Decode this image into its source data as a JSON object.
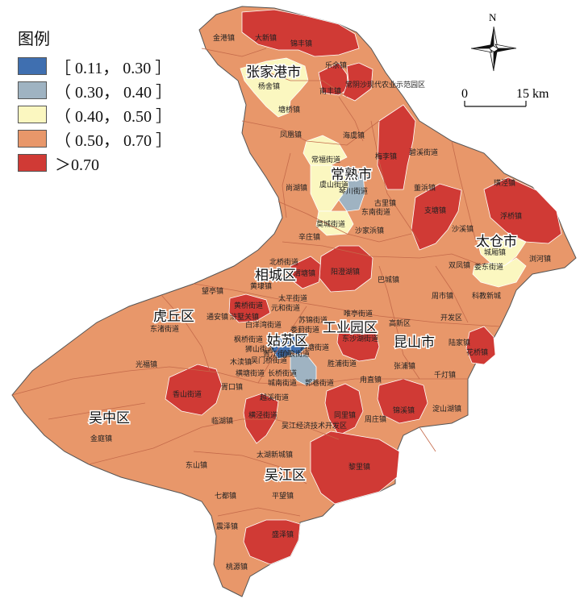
{
  "legend": {
    "title": "图例",
    "items": [
      {
        "label": "［ 0.11， 0.30 ］",
        "color": "#3f6fb0"
      },
      {
        "label": "（ 0.30， 0.40 ］",
        "color": "#9fb3c2"
      },
      {
        "label": "（ 0.40， 0.50 ］",
        "color": "#fbf7c0"
      },
      {
        "label": "（ 0.50， 0.70 ］",
        "color": "#e8976a"
      },
      {
        "label": "＞0.70",
        "color": "#d03a35"
      }
    ]
  },
  "north_label": "N",
  "scale": {
    "start": "0",
    "end": "15 km"
  },
  "colors": {
    "boundary": "#ffffff",
    "outline": "#555555",
    "district_line": "#c46a4a"
  },
  "districts": [
    {
      "name": "张家港市",
      "class": 3
    },
    {
      "name": "常熟市",
      "class": 3
    },
    {
      "name": "太仓市",
      "class": 3
    },
    {
      "name": "相城区",
      "class": 3
    },
    {
      "name": "虎丘区",
      "class": 3
    },
    {
      "name": "工业园区",
      "class": 3
    },
    {
      "name": "姑苏区",
      "class": 3
    },
    {
      "name": "昆山市",
      "class": 3
    },
    {
      "name": "吴中区",
      "class": 3
    },
    {
      "name": "吴江区",
      "class": 3
    }
  ],
  "towns": [
    {
      "name": "金港镇",
      "class": 3
    },
    {
      "name": "大新镇",
      "class": 4
    },
    {
      "name": "锦丰镇",
      "class": 4
    },
    {
      "name": "乐余镇",
      "class": 3
    },
    {
      "name": "杨舍镇",
      "class": 2
    },
    {
      "name": "南丰镇",
      "class": 4
    },
    {
      "name": "常阴沙现代农业示范园区",
      "class": 4
    },
    {
      "name": "塘桥镇",
      "class": 3
    },
    {
      "name": "凤凰镇",
      "class": 3
    },
    {
      "name": "海虞镇",
      "class": 3
    },
    {
      "name": "梅李镇",
      "class": 4
    },
    {
      "name": "碧溪街道",
      "class": 3
    },
    {
      "name": "常福街道",
      "class": 2
    },
    {
      "name": "虞山街道",
      "class": 2
    },
    {
      "name": "琴川街道",
      "class": 1
    },
    {
      "name": "尚湖镇",
      "class": 3
    },
    {
      "name": "古里镇",
      "class": 3
    },
    {
      "name": "东南街道",
      "class": 3
    },
    {
      "name": "董浜镇",
      "class": 3
    },
    {
      "name": "璜泾镇",
      "class": 3
    },
    {
      "name": "支塘镇",
      "class": 4
    },
    {
      "name": "浮桥镇",
      "class": 4
    },
    {
      "name": "莫城街道",
      "class": 2
    },
    {
      "name": "沙家浜镇",
      "class": 3
    },
    {
      "name": "辛庄镇",
      "class": 3
    },
    {
      "name": "沙溪镇",
      "class": 3
    },
    {
      "name": "城厢镇",
      "class": 2
    },
    {
      "name": "双凤镇",
      "class": 3
    },
    {
      "name": "浏河镇",
      "class": 3
    },
    {
      "name": "娄东街道",
      "class": 2
    },
    {
      "name": "北桥街道",
      "class": 3
    },
    {
      "name": "渭塘镇",
      "class": 4
    },
    {
      "name": "阳澄湖镇",
      "class": 4
    },
    {
      "name": "黄埭镇",
      "class": 3
    },
    {
      "name": "巴城镇",
      "class": 3
    },
    {
      "name": "望亭镇",
      "class": 3
    },
    {
      "name": "太平街道",
      "class": 3
    },
    {
      "name": "黄桥街道",
      "class": 4
    },
    {
      "name": "元和街道",
      "class": 3
    },
    {
      "name": "周市镇",
      "class": 3
    },
    {
      "name": "科教新城",
      "class": 3
    },
    {
      "name": "通安镇",
      "class": 3
    },
    {
      "name": "浒墅关镇",
      "class": 3
    },
    {
      "name": "唯亭街道",
      "class": 3
    },
    {
      "name": "开发区",
      "class": 3
    },
    {
      "name": "东渚街道",
      "class": 3
    },
    {
      "name": "白洋湾街道",
      "class": 3
    },
    {
      "name": "苏锦街道",
      "class": 3
    },
    {
      "name": "娄葑街道",
      "class": 3
    },
    {
      "name": "高新区",
      "class": 3
    },
    {
      "name": "陆家镇",
      "class": 3
    },
    {
      "name": "枫桥街道",
      "class": 3
    },
    {
      "name": "狮山街道",
      "class": 3
    },
    {
      "name": "东沙湖街道",
      "class": 4
    },
    {
      "name": "斜塘街道",
      "class": 3
    },
    {
      "name": "花桥镇",
      "class": 4
    },
    {
      "name": "光福镇",
      "class": 3
    },
    {
      "name": "木渎镇",
      "class": 3
    },
    {
      "name": "吴门桥街道",
      "class": 3
    },
    {
      "name": "胥江街道",
      "class": 0
    },
    {
      "name": "沧浪街道",
      "class": 0
    },
    {
      "name": "胜浦街道",
      "class": 3
    },
    {
      "name": "张浦镇",
      "class": 3
    },
    {
      "name": "千灯镇",
      "class": 3
    },
    {
      "name": "横塘街道",
      "class": 3
    },
    {
      "name": "长桥街道",
      "class": 3
    },
    {
      "name": "城南街道",
      "class": 1
    },
    {
      "name": "郭巷街道",
      "class": 3
    },
    {
      "name": "甪直镇",
      "class": 3
    },
    {
      "name": "香山街道",
      "class": 4
    },
    {
      "name": "胥口镇",
      "class": 3
    },
    {
      "name": "越溪街道",
      "class": 3
    },
    {
      "name": "锦溪镇",
      "class": 4
    },
    {
      "name": "淀山湖镇",
      "class": 3
    },
    {
      "name": "临湖镇",
      "class": 3
    },
    {
      "name": "横泾街道",
      "class": 4
    },
    {
      "name": "同里镇",
      "class": 4
    },
    {
      "name": "周庄镇",
      "class": 3
    },
    {
      "name": "吴江经济技术开发区",
      "class": 3
    },
    {
      "name": "金庭镇",
      "class": 3
    },
    {
      "name": "太湖新城镇",
      "class": 3
    },
    {
      "name": "东山镇",
      "class": 3
    },
    {
      "name": "黎里镇",
      "class": 4
    },
    {
      "name": "平望镇",
      "class": 3
    },
    {
      "name": "七都镇",
      "class": 3
    },
    {
      "name": "震泽镇",
      "class": 3
    },
    {
      "name": "盛泽镇",
      "class": 4
    },
    {
      "name": "桃源镇",
      "class": 3
    }
  ]
}
